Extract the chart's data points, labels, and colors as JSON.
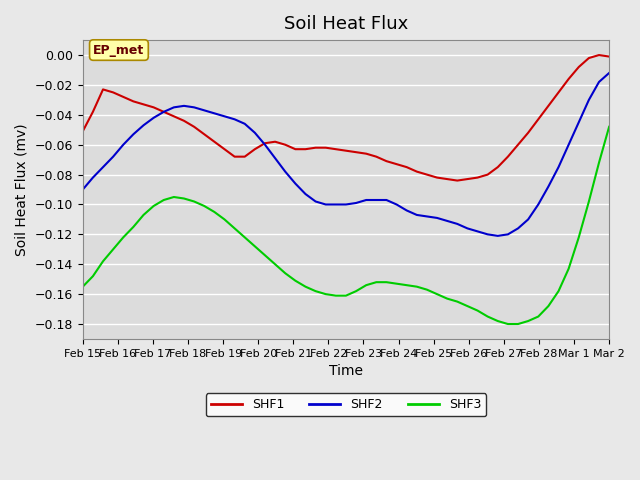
{
  "title": "Soil Heat Flux",
  "xlabel": "Time",
  "ylabel": "Soil Heat Flux (mv)",
  "ylim": [
    -0.19,
    0.01
  ],
  "annotation": "EP_met",
  "bg_color": "#e8e8e8",
  "plot_bg_color": "#dcdcdc",
  "x_labels": [
    "Feb 15",
    "Feb 16",
    "Feb 17",
    "Feb 18",
    "Feb 19",
    "Feb 20",
    "Feb 21",
    "Feb 22",
    "Feb 23",
    "Feb 24",
    "Feb 25",
    "Feb 26",
    "Feb 27",
    "Feb 28",
    "Mar 1",
    "Mar 2"
  ],
  "shf1_color": "#cc0000",
  "shf2_color": "#0000cc",
  "shf3_color": "#00cc00",
  "shf1": [
    -0.051,
    -0.038,
    -0.023,
    -0.025,
    -0.028,
    -0.031,
    -0.033,
    -0.035,
    -0.038,
    -0.041,
    -0.044,
    -0.048,
    -0.053,
    -0.058,
    -0.063,
    -0.068,
    -0.068,
    -0.063,
    -0.059,
    -0.058,
    -0.06,
    -0.063,
    -0.063,
    -0.062,
    -0.062,
    -0.063,
    -0.064,
    -0.065,
    -0.066,
    -0.068,
    -0.071,
    -0.073,
    -0.075,
    -0.078,
    -0.08,
    -0.082,
    -0.083,
    -0.084,
    -0.083,
    -0.082,
    -0.08,
    -0.075,
    -0.068,
    -0.06,
    -0.052,
    -0.043,
    -0.034,
    -0.025,
    -0.016,
    -0.008,
    -0.002,
    0.0,
    -0.001
  ],
  "shf2": [
    -0.09,
    -0.082,
    -0.075,
    -0.068,
    -0.06,
    -0.053,
    -0.047,
    -0.042,
    -0.038,
    -0.035,
    -0.034,
    -0.035,
    -0.037,
    -0.039,
    -0.041,
    -0.043,
    -0.046,
    -0.052,
    -0.06,
    -0.069,
    -0.078,
    -0.086,
    -0.093,
    -0.098,
    -0.1,
    -0.1,
    -0.1,
    -0.099,
    -0.097,
    -0.097,
    -0.097,
    -0.1,
    -0.104,
    -0.107,
    -0.108,
    -0.109,
    -0.111,
    -0.113,
    -0.116,
    -0.118,
    -0.12,
    -0.121,
    -0.12,
    -0.116,
    -0.11,
    -0.1,
    -0.088,
    -0.075,
    -0.06,
    -0.045,
    -0.03,
    -0.018,
    -0.012
  ],
  "shf3": [
    -0.155,
    -0.148,
    -0.138,
    -0.13,
    -0.122,
    -0.115,
    -0.107,
    -0.101,
    -0.097,
    -0.095,
    -0.096,
    -0.098,
    -0.101,
    -0.105,
    -0.11,
    -0.116,
    -0.122,
    -0.128,
    -0.134,
    -0.14,
    -0.146,
    -0.151,
    -0.155,
    -0.158,
    -0.16,
    -0.161,
    -0.161,
    -0.158,
    -0.154,
    -0.152,
    -0.152,
    -0.153,
    -0.154,
    -0.155,
    -0.157,
    -0.16,
    -0.163,
    -0.165,
    -0.168,
    -0.171,
    -0.175,
    -0.178,
    -0.18,
    -0.18,
    -0.178,
    -0.175,
    -0.168,
    -0.158,
    -0.143,
    -0.122,
    -0.098,
    -0.072,
    -0.048
  ],
  "yticks": [
    -0.18,
    -0.16,
    -0.14,
    -0.12,
    -0.1,
    -0.08,
    -0.06,
    -0.04,
    -0.02,
    0.0
  ]
}
